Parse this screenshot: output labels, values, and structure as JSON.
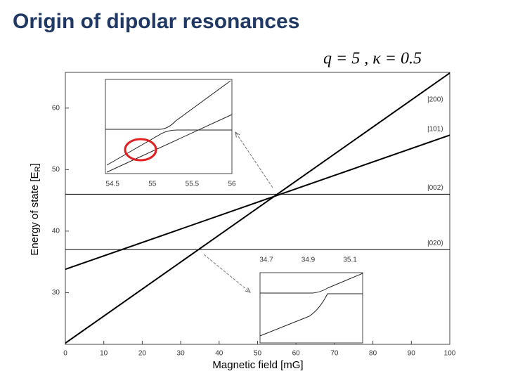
{
  "slide_title": "Origin of dipolar resonances",
  "chart_data": {
    "type": "line",
    "annotation": "q = 5 ,  κ = 0.5",
    "x_label": "Magnetic field [mG]",
    "y_label": {
      "text": "Energy of state [E",
      "sub": "R",
      "close": "]"
    },
    "x": [
      0,
      100
    ],
    "series": [
      {
        "name": "|200⟩",
        "color": "#000000",
        "values": [
          21.8,
          65.7
        ]
      },
      {
        "name": "|101⟩",
        "color": "#000000",
        "values": [
          33.8,
          55.6
        ]
      },
      {
        "name": "|002⟩",
        "color": "#000000",
        "values": [
          46,
          46
        ]
      },
      {
        "name": "|020⟩",
        "color": "#000000",
        "values": [
          37,
          37
        ]
      }
    ],
    "xlim": [
      0,
      100
    ],
    "xticks": [
      0,
      10,
      20,
      30,
      40,
      50,
      60,
      70,
      80,
      90,
      100
    ],
    "ylim": [
      21.6,
      65.8
    ],
    "yticks": [
      30,
      40,
      50,
      60
    ],
    "insets": [
      {
        "xlim": [
          54.41,
          56
        ],
        "xticks": [
          54.5,
          55,
          55.5,
          56
        ]
      },
      {
        "xlim": [
          34.67,
          35.16
        ],
        "xticks": [
          34.7,
          34.9,
          35.1
        ]
      }
    ]
  }
}
